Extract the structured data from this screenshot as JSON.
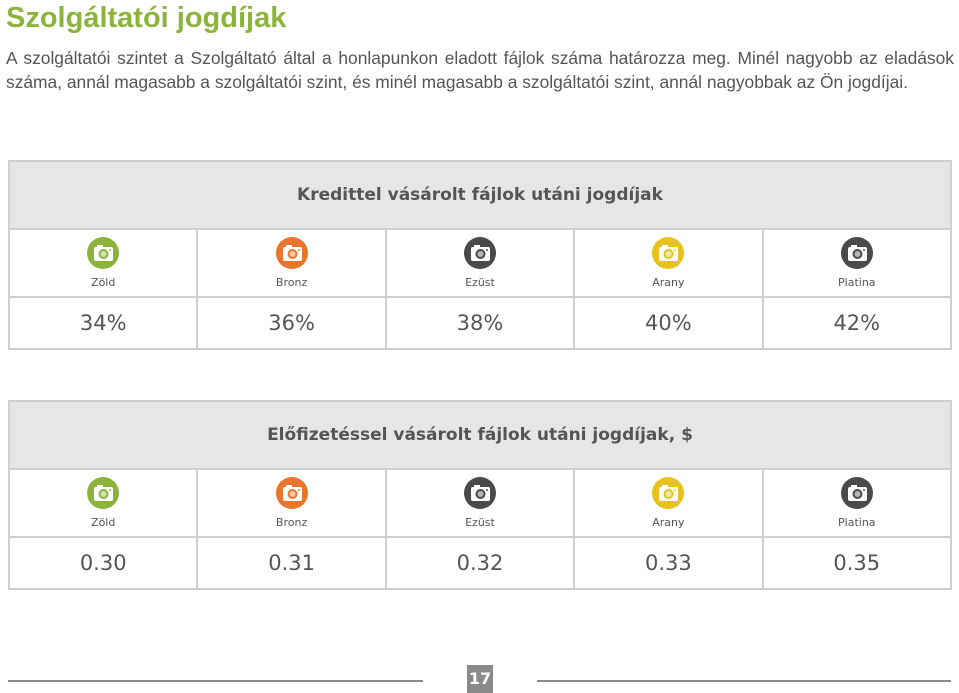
{
  "title": "Szolgáltatói jogdíjak",
  "paragraph": "A szolgáltatói szintet a Szolgáltató által a honlapunkon eladott fájlok száma határozza meg. Minél nagyobb az eladások száma, annál magasabb a szolgáltatói szint, és minél magasabb a szolgáltatói szint, annál nagyobbak az Ön jogdíjai.",
  "tables": [
    {
      "heading": "Kredittel vásárolt fájlok utáni jogdíjak",
      "tiers": [
        "Zöld",
        "Bronz",
        "Ezüst",
        "Arany",
        "Platina"
      ],
      "values": [
        "34%",
        "36%",
        "38%",
        "40%",
        "42%"
      ]
    },
    {
      "heading": "Előfizetéssel vásárolt fájlok utáni jogdíjak, $",
      "tiers": [
        "Zöld",
        "Bronz",
        "Ezüst",
        "Arany",
        "Platina"
      ],
      "values": [
        "0.30",
        "0.31",
        "0.32",
        "0.33",
        "0.35"
      ]
    }
  ],
  "page_number": "17"
}
